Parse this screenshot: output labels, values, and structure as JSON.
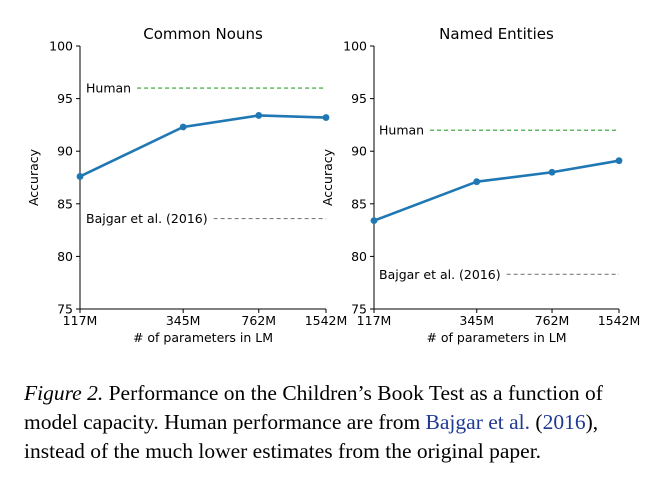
{
  "chart_data": [
    {
      "type": "line",
      "title": "Common Nouns",
      "xlabel": "# of parameters in LM",
      "ylabel": "Accuracy",
      "x": [
        "117M",
        "345M",
        "762M",
        "1542M"
      ],
      "series": [
        {
          "values": [
            87.6,
            92.3,
            93.4,
            93.2
          ],
          "color": "#1f77b4"
        }
      ],
      "ylim": [
        75,
        100
      ],
      "yticks": [
        75,
        80,
        85,
        90,
        95,
        100
      ],
      "reference_lines": [
        {
          "label": "Human",
          "value": 96.0,
          "color": "#2ca02c"
        },
        {
          "label": "Bajgar et al. (2016)",
          "value": 83.6,
          "color": "#7f7f7f"
        }
      ],
      "grid": false
    },
    {
      "type": "line",
      "title": "Named Entities",
      "xlabel": "# of parameters in LM",
      "ylabel": "Accuracy",
      "x": [
        "117M",
        "345M",
        "762M",
        "1542M"
      ],
      "series": [
        {
          "values": [
            83.4,
            87.1,
            88.0,
            89.1
          ],
          "color": "#1f77b4"
        }
      ],
      "ylim": [
        75,
        100
      ],
      "yticks": [
        75,
        80,
        85,
        90,
        95,
        100
      ],
      "reference_lines": [
        {
          "label": "Human",
          "value": 92.0,
          "color": "#2ca02c"
        },
        {
          "label": "Bajgar et al. (2016)",
          "value": 78.3,
          "color": "#7f7f7f"
        }
      ],
      "grid": false
    }
  ],
  "caption": {
    "label": "Figure 2.",
    "text_before": "Performance on the Children’s Book Test as a function of model capacity. Human performance are from",
    "cite_authors": "Bajgar et al.",
    "cite_year": "2016",
    "text_after": "instead of the much lower estimates from the original paper."
  }
}
